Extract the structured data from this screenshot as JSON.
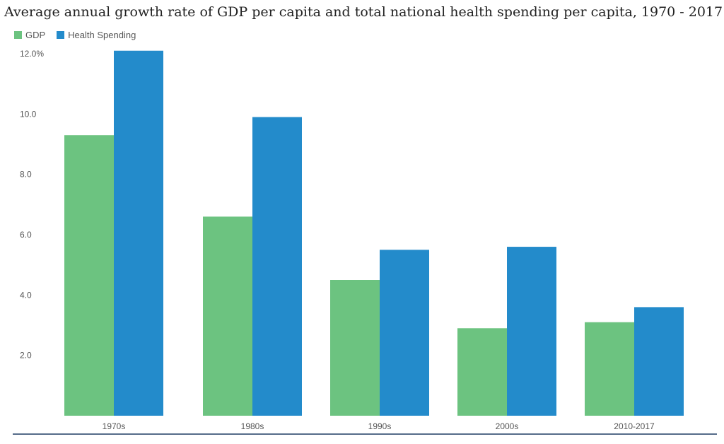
{
  "chart_data": {
    "type": "bar",
    "title": "Average annual growth rate of GDP per capita and total national health spending per capita, 1970 - 2017",
    "xlabel": "",
    "ylabel": "",
    "categories": [
      "1970s",
      "1980s",
      "1990s",
      "2000s",
      "2010-2017"
    ],
    "series": [
      {
        "name": "GDP",
        "color": "#6cc380",
        "values": [
          9.3,
          6.6,
          4.5,
          2.9,
          3.1
        ]
      },
      {
        "name": "Health Spending",
        "color": "#238bcb",
        "values": [
          12.1,
          9.9,
          5.5,
          5.6,
          3.6
        ]
      }
    ],
    "ylim": [
      0,
      12
    ],
    "yticks": [
      {
        "value": 2,
        "label": "2.0"
      },
      {
        "value": 4,
        "label": "4.0"
      },
      {
        "value": 6,
        "label": "6.0"
      },
      {
        "value": 8,
        "label": "8.0"
      },
      {
        "value": 10,
        "label": "10.0"
      },
      {
        "value": 12,
        "label": "12.0%"
      }
    ],
    "grid": false,
    "legend_position": "top-left"
  }
}
